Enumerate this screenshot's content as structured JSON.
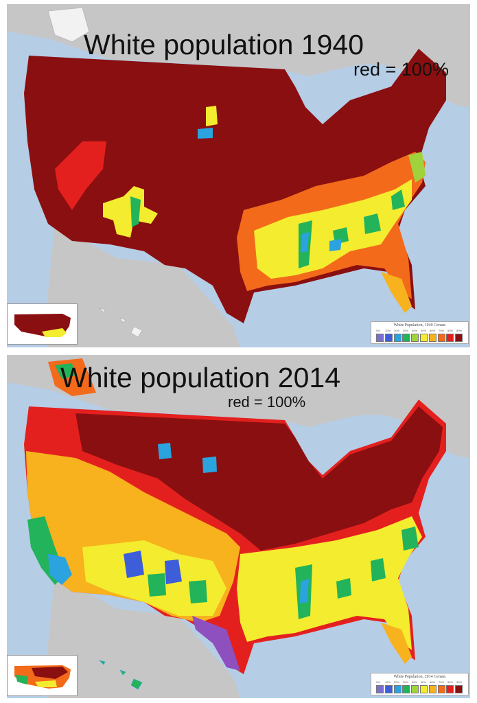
{
  "maps": [
    {
      "title": "White population 1940",
      "subtitle": "red = 100%",
      "legend": {
        "title": "White Population, 1940 Census",
        "ticks": [
          "0%",
          "10%",
          "20%",
          "30%",
          "40%",
          "50%",
          "60%",
          "70%",
          "80%",
          "90%"
        ]
      }
    },
    {
      "title": "White population 2014",
      "subtitle": "red = 100%",
      "legend": {
        "title": "White Population, 2014 Census",
        "ticks": [
          "0%",
          "10%",
          "20%",
          "30%",
          "40%",
          "50%",
          "60%",
          "70%",
          "80%",
          "90%"
        ]
      }
    }
  ],
  "colors": {
    "water": "#b6cde6",
    "land_outside": "#c6c6c6",
    "scale": [
      "#8e4fbf",
      "#7a6fd0",
      "#3d5ed8",
      "#2aa3df",
      "#23b35a",
      "#9fd23b",
      "#f4ec2e",
      "#f7b21d",
      "#f36a1b",
      "#e4201f",
      "#8a0f10"
    ]
  }
}
